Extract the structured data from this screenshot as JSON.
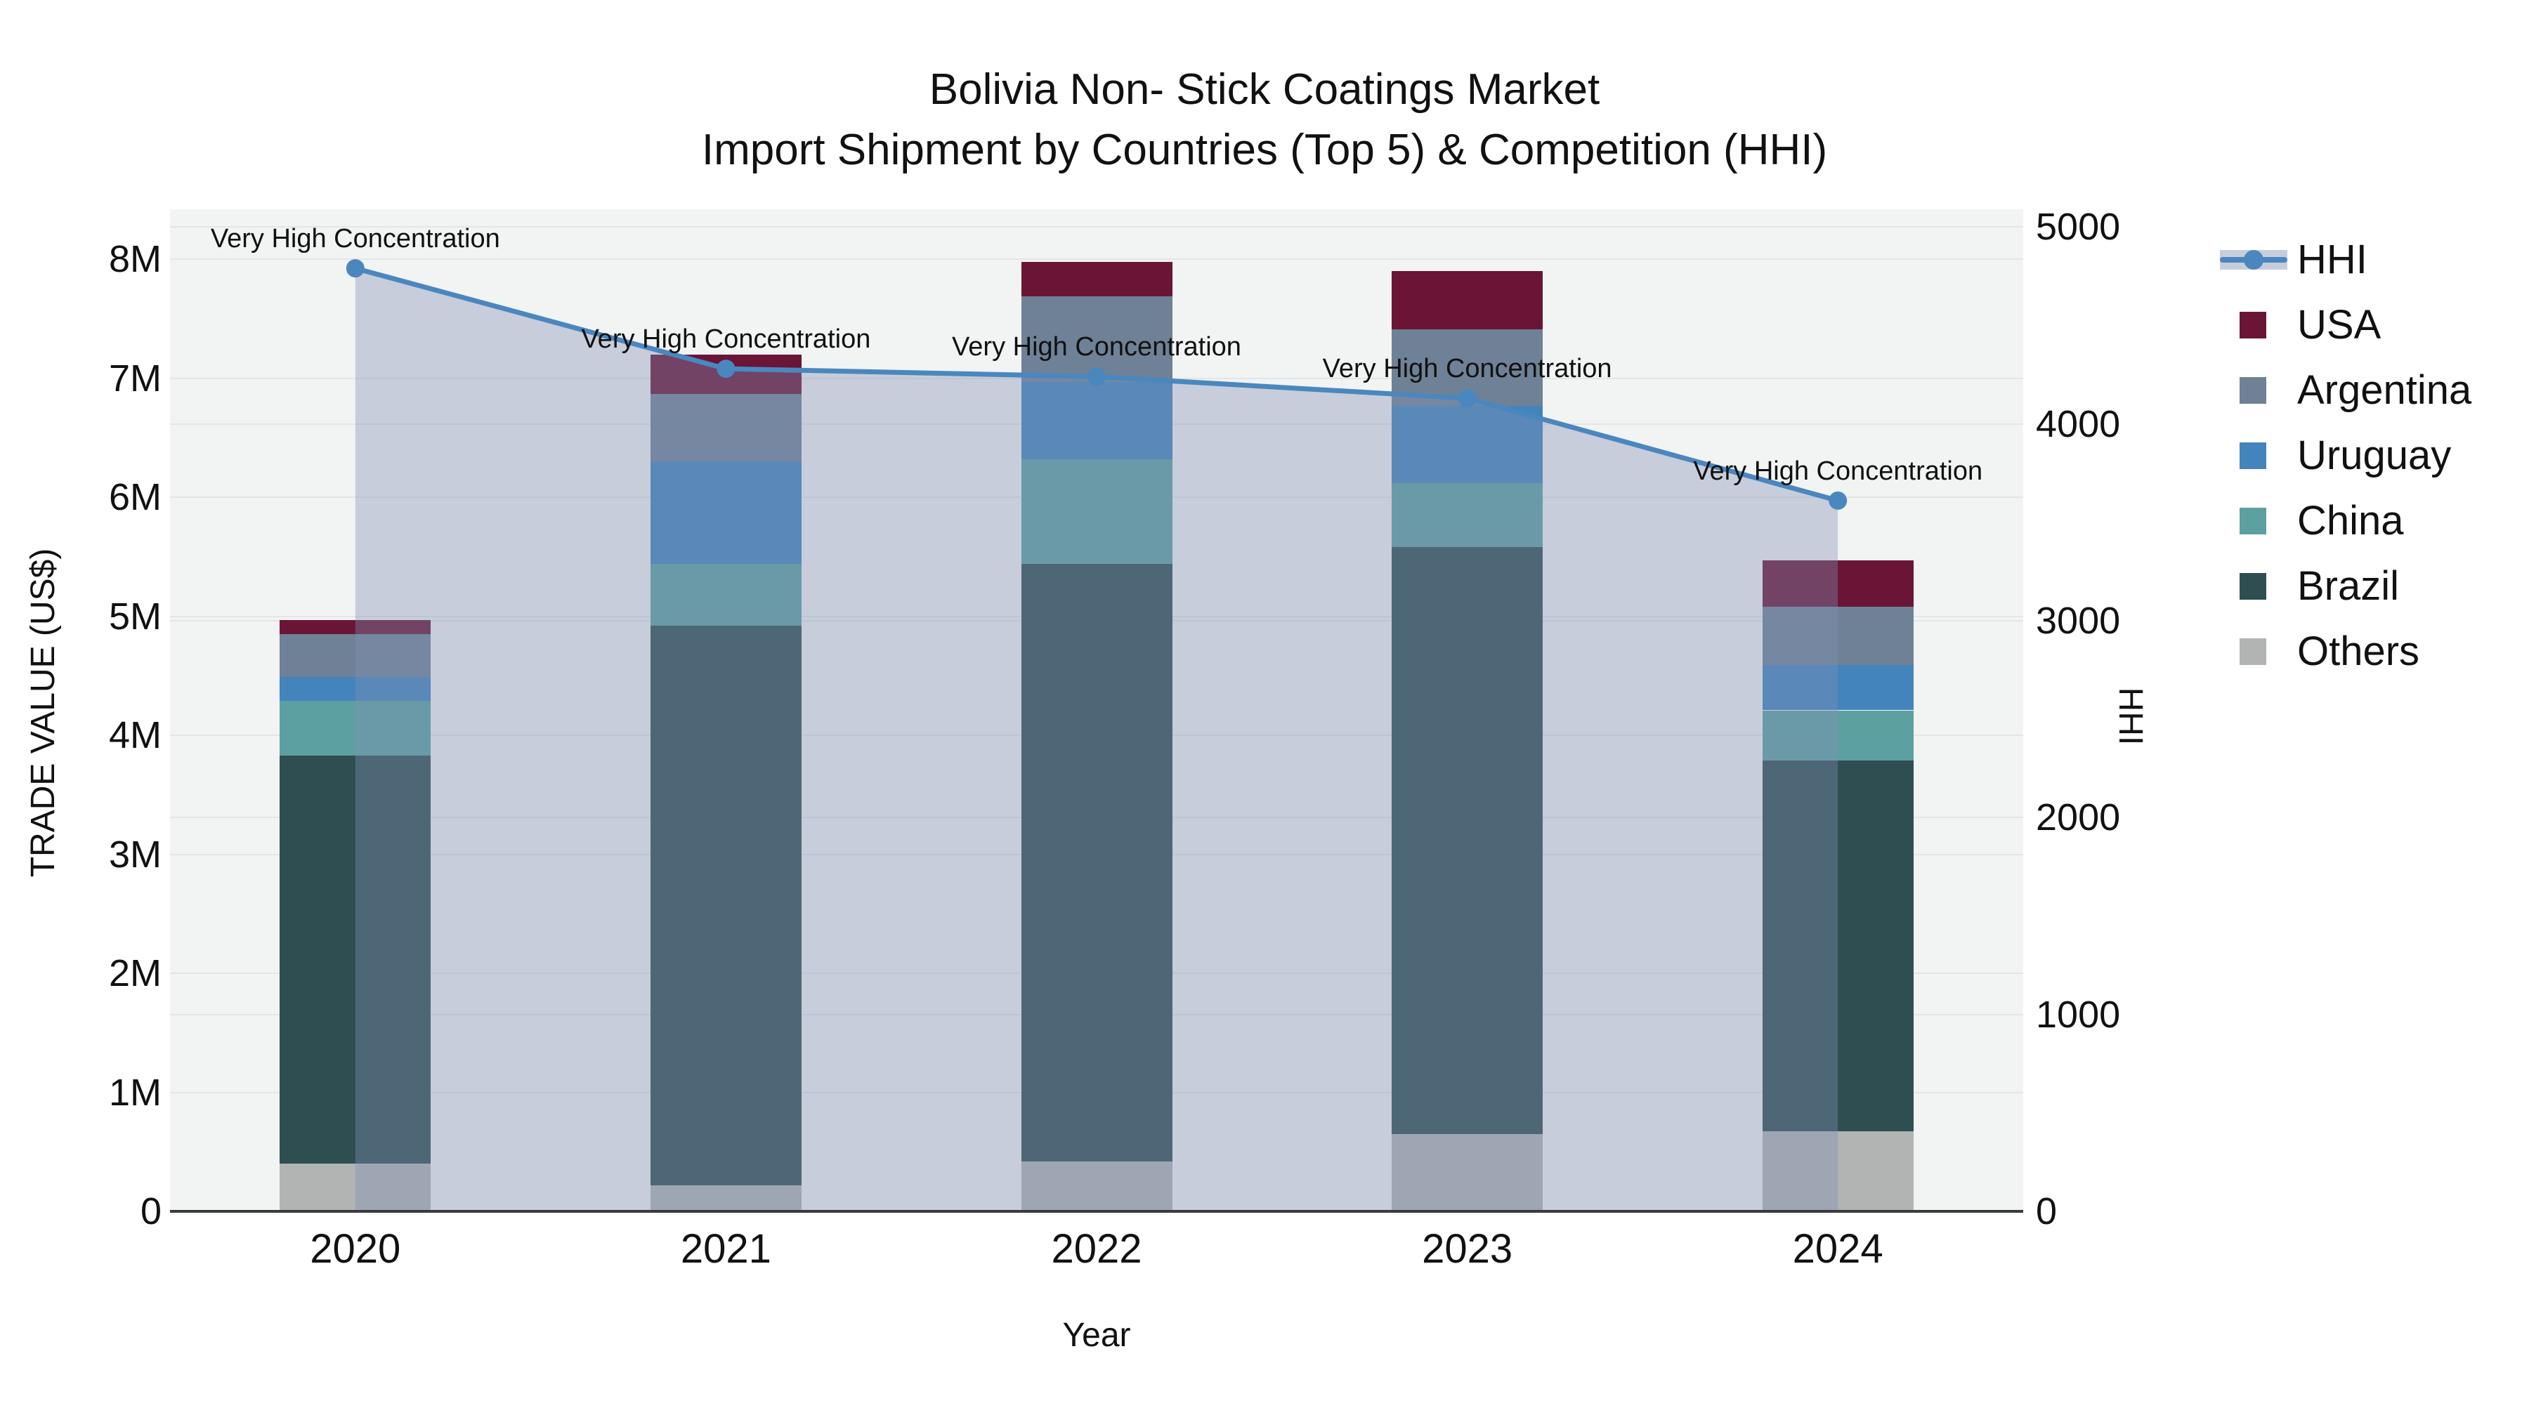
{
  "title": {
    "line1": "Bolivia Non- Stick Coatings Market",
    "line2": "Import Shipment by Countries (Top 5) & Competition (HHI)"
  },
  "axes": {
    "x_title": "Year",
    "y_left_title": "TRADE VALUE (US$)",
    "y_right_title": "HHI",
    "x_ticks": [
      "2020",
      "2021",
      "2022",
      "2023",
      "2024"
    ],
    "y_left_ticks": [
      "0",
      "1M",
      "2M",
      "3M",
      "4M",
      "5M",
      "6M",
      "7M",
      "8M"
    ],
    "y_left_tick_values": [
      0,
      1,
      2,
      3,
      4,
      5,
      6,
      7,
      8
    ],
    "y_right_ticks": [
      "0",
      "1000",
      "2000",
      "3000",
      "4000",
      "5000"
    ],
    "y_right_tick_values": [
      0,
      1000,
      2000,
      3000,
      4000,
      5000
    ]
  },
  "legend": [
    {
      "label": "HHI",
      "type": "line",
      "color": "#4a87bf"
    },
    {
      "label": "USA",
      "type": "swatch",
      "color": "#6a1436"
    },
    {
      "label": "Argentina",
      "type": "swatch",
      "color": "#6f8196"
    },
    {
      "label": "Uruguay",
      "type": "swatch",
      "color": "#4384bd"
    },
    {
      "label": "China",
      "type": "swatch",
      "color": "#5da0a1"
    },
    {
      "label": "Brazil",
      "type": "swatch",
      "color": "#2e4e51"
    },
    {
      "label": "Others",
      "type": "swatch",
      "color": "#b2b4b3"
    }
  ],
  "colors": {
    "plot_bg": "#f2f3f3",
    "gridline": "#e3e5e8",
    "axis_line": "#3a3a3a",
    "text": "#111111",
    "hhi_line": "#4a87bf",
    "hhi_area": "rgba(128,144,178,0.38)"
  },
  "chart_data": {
    "type": "bar+line",
    "title": "Bolivia Non- Stick Coatings Market — Import Shipment by Countries (Top 5) & Competition (HHI)",
    "xlabel": "Year",
    "ylabel_left": "TRADE VALUE (US$)",
    "ylabel_right": "HHI",
    "categories": [
      "2020",
      "2021",
      "2022",
      "2023",
      "2024"
    ],
    "unit": "millions US$",
    "stack_order_bottom_to_top": [
      "Others",
      "Brazil",
      "China",
      "Uruguay",
      "Argentina",
      "USA"
    ],
    "series": [
      {
        "name": "Others",
        "color": "#b2b4b3",
        "values": [
          0.4,
          0.22,
          0.42,
          0.65,
          0.67
        ]
      },
      {
        "name": "Brazil",
        "color": "#2e4e51",
        "values": [
          3.43,
          4.7,
          5.02,
          4.93,
          3.12
        ]
      },
      {
        "name": "China",
        "color": "#5da0a1",
        "values": [
          0.46,
          0.52,
          0.88,
          0.54,
          0.42
        ]
      },
      {
        "name": "Uruguay",
        "color": "#4384bd",
        "values": [
          0.2,
          0.86,
          0.65,
          0.65,
          0.38
        ]
      },
      {
        "name": "Argentina",
        "color": "#6f8196",
        "values": [
          0.36,
          0.57,
          0.72,
          0.64,
          0.49
        ]
      },
      {
        "name": "USA",
        "color": "#6a1436",
        "values": [
          0.12,
          0.33,
          0.29,
          0.49,
          0.39
        ]
      }
    ],
    "bar_totals": [
      4.97,
      7.2,
      7.98,
      7.9,
      5.47
    ],
    "line_series": {
      "name": "HHI",
      "axis": "right",
      "color": "#4a87bf",
      "area_color": "rgba(128,144,178,0.38)",
      "values": [
        4790,
        4280,
        4240,
        4130,
        3610
      ],
      "annotations": [
        "Very High Concentration",
        "Very High Concentration",
        "Very High Concentration",
        "Very High Concentration",
        "Very High Concentration"
      ]
    },
    "ylim_left_millions": [
      0,
      8.42
    ],
    "ylim_right": [
      0,
      5090
    ],
    "grid": true,
    "legend_position": "right"
  }
}
